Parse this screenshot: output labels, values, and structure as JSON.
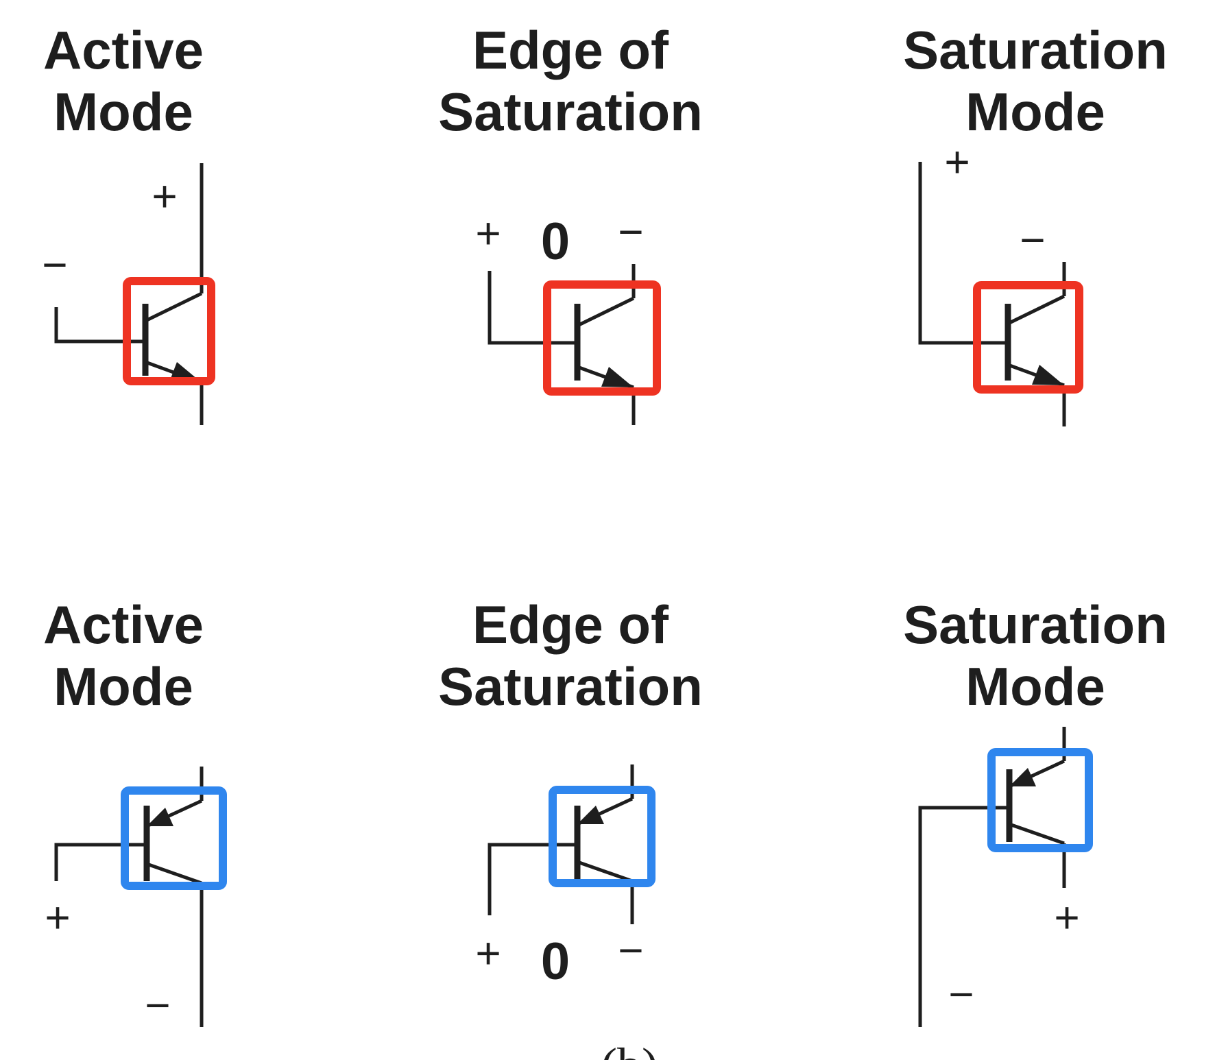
{
  "colors": {
    "npn_highlight": "#ee3322",
    "pnp_highlight": "#2f86ee",
    "ink": "#1e1e1e"
  },
  "rows": [
    {
      "device": "npn",
      "panels": [
        {
          "title_line1": "Active",
          "title_line2": "Mode",
          "signs": [
            "+",
            "−"
          ]
        },
        {
          "title_line1": "Edge of",
          "title_line2": "Saturation",
          "signs": [
            "+",
            "0",
            "−"
          ]
        },
        {
          "title_line1": "Saturation",
          "title_line2": "Mode",
          "signs": [
            "+",
            "−"
          ]
        }
      ]
    },
    {
      "device": "pnp",
      "panels": [
        {
          "title_line1": "Active",
          "title_line2": "Mode",
          "signs": [
            "+",
            "−"
          ]
        },
        {
          "title_line1": "Edge of",
          "title_line2": "Saturation",
          "signs": [
            "+",
            "0",
            "−"
          ]
        },
        {
          "title_line1": "Saturation",
          "title_line2": "Mode",
          "signs": [
            "+",
            "−"
          ]
        }
      ]
    }
  ],
  "caption": "(b)"
}
